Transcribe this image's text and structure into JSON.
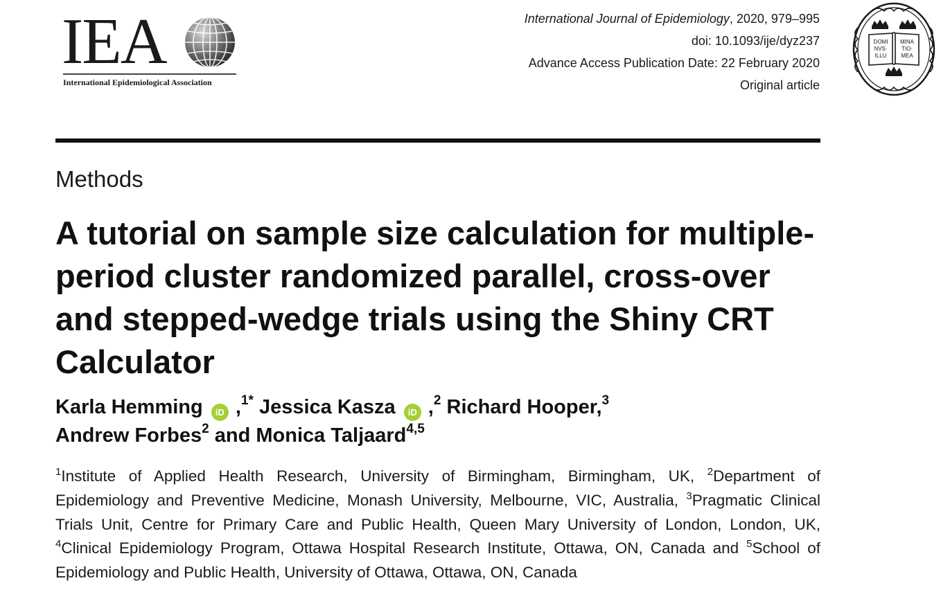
{
  "iea_logo": {
    "letters": "IEA",
    "tagline": "International Epidemiological Association"
  },
  "journal_meta": {
    "journal_name": "International Journal of Epidemiology",
    "year_pages": ", 2020, 979–995",
    "doi": "doi: 10.1093/ije/dyz237",
    "publication_date": "Advance Access Publication Date: 22 February 2020",
    "article_type": "Original article"
  },
  "oup_seal": {
    "left_page": [
      "DOMI",
      "NVS·",
      "ILLU"
    ],
    "right_page": [
      "MINA",
      "TIO·",
      "MEA"
    ]
  },
  "section_label": "Methods",
  "title": "A tutorial on sample size calculation for multiple-period cluster randomized parallel, cross-over and stepped-wedge trials using the Shiny CRT Calculator",
  "orcid_badge": "iD",
  "authors": [
    {
      "name": "Karla Hemming",
      "orcid": true,
      "sup": "1*"
    },
    {
      "name": "Jessica Kasza",
      "orcid": true,
      "sup": "2"
    },
    {
      "name": "Richard Hooper",
      "sup": "3"
    },
    {
      "name": "Andrew Forbes",
      "sup": "2"
    },
    {
      "name": "Monica Taljaard",
      "sup": "4,5"
    }
  ],
  "author_separators": {
    "comma": ",",
    "and": "and"
  },
  "affiliations": [
    {
      "sup": "1",
      "text": "Institute of Applied Health Research, University of Birmingham, Birmingham, UK, "
    },
    {
      "sup": "2",
      "text": "Department of Epidemiology and Preventive Medicine, Monash University, Melbourne, VIC, Australia, "
    },
    {
      "sup": "3",
      "text": "Pragmatic Clinical Trials Unit, Centre for Primary Care and Public Health, Queen Mary University of London, London, UK, "
    },
    {
      "sup": "4",
      "text": "Clinical Epidemiology Program, Ottawa Hospital Research Institute, Ottawa, ON, Canada and "
    },
    {
      "sup": "5",
      "text": "School of Epidemiology and Public Health, University of Ottawa, Ottawa, ON, Canada"
    }
  ]
}
